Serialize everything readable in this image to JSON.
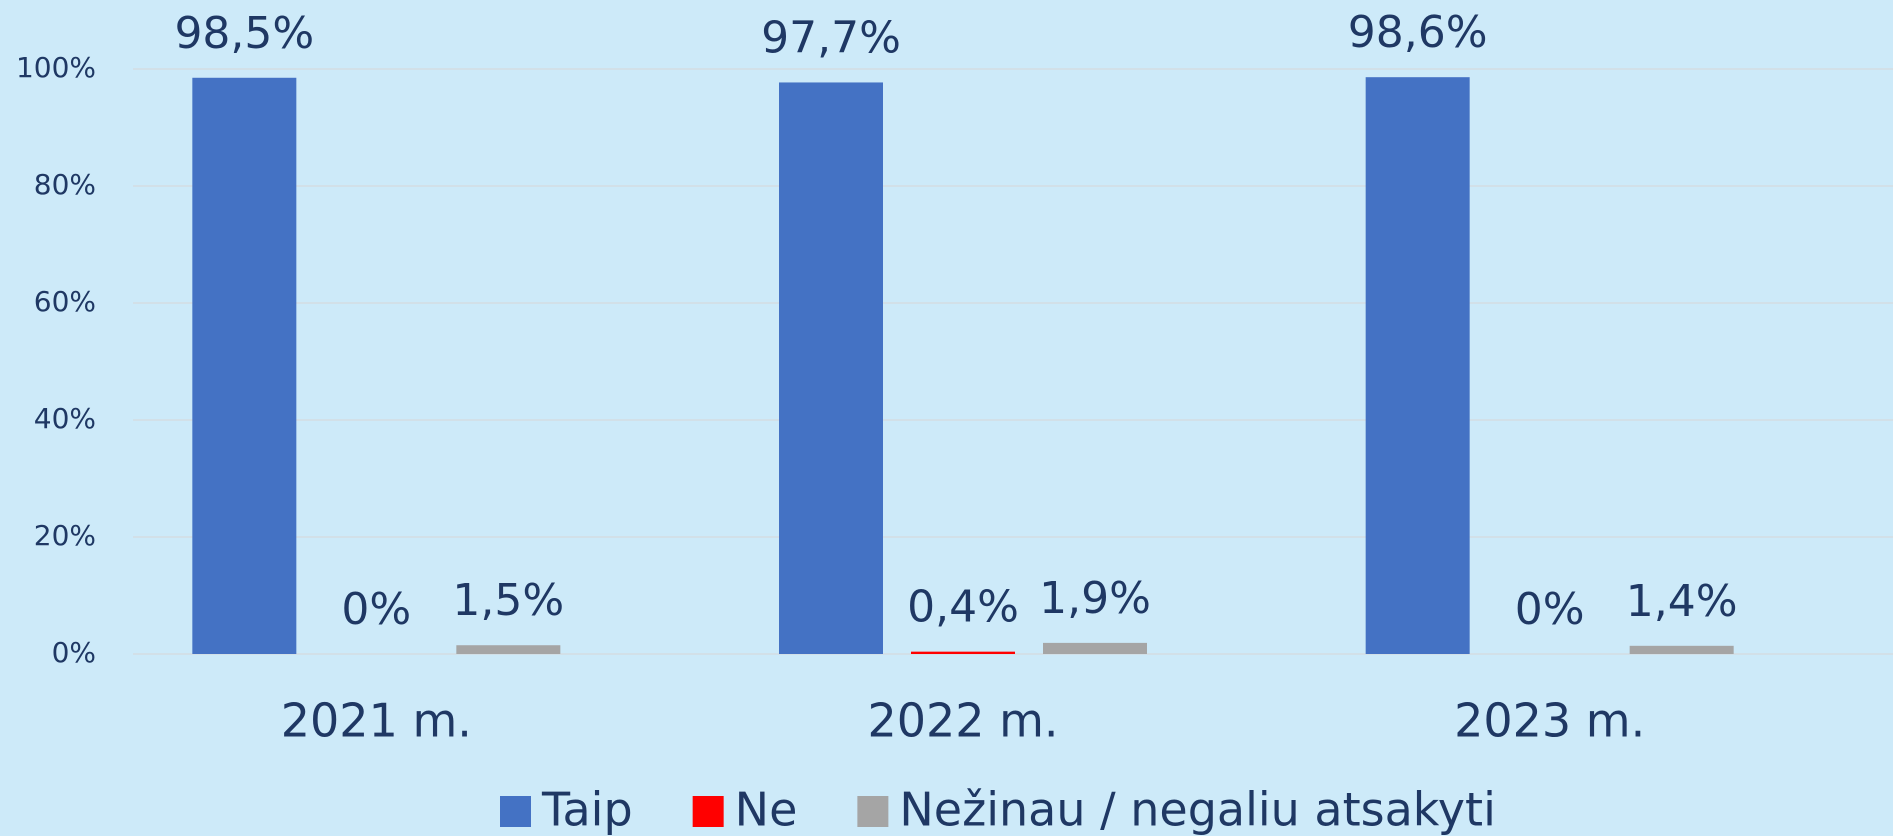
{
  "chart_data": {
    "type": "bar",
    "categories": [
      "2021 m.",
      "2022 m.",
      "2023 m."
    ],
    "series": [
      {
        "name": "Taip",
        "color": "#4472c4",
        "values": [
          98.5,
          97.7,
          98.6
        ],
        "value_labels": [
          "98,5%",
          "97,7%",
          "98,6%"
        ]
      },
      {
        "name": "Ne",
        "color": "#ff0000",
        "values": [
          0,
          0.4,
          0
        ],
        "value_labels": [
          "0%",
          "0,4%",
          "0%"
        ]
      },
      {
        "name": "Nežinau / negaliu atsakyti",
        "color": "#a5a5a5",
        "values": [
          1.5,
          1.9,
          1.4
        ],
        "value_labels": [
          "1,5%",
          "1,9%",
          "1,4%"
        ]
      }
    ],
    "ylim": [
      0,
      100
    ],
    "yticks": [
      {
        "value": 0,
        "label": "0%"
      },
      {
        "value": 20,
        "label": "20%"
      },
      {
        "value": 40,
        "label": "40%"
      },
      {
        "value": 60,
        "label": "60%"
      },
      {
        "value": 80,
        "label": "80%"
      },
      {
        "value": 100,
        "label": "100%"
      }
    ],
    "grid": true,
    "legend": "bottom"
  }
}
